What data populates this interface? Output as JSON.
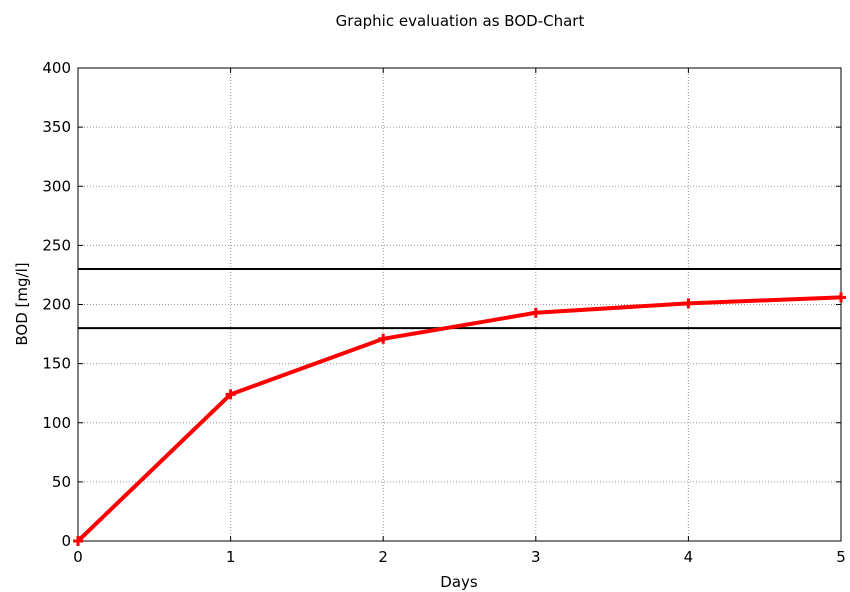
{
  "chart_data": {
    "type": "line",
    "title": "Graphic evaluation as BOD-Chart",
    "xlabel": "Days",
    "ylabel": "BOD [mg/l]",
    "xlim": [
      0,
      5
    ],
    "ylim": [
      0,
      400
    ],
    "xticks": [
      0,
      1,
      2,
      3,
      4,
      5
    ],
    "yticks": [
      0,
      50,
      100,
      150,
      200,
      250,
      300,
      350,
      400
    ],
    "grid": true,
    "grid_style": "dotted",
    "series": [
      {
        "color": "#ff0000",
        "marker": "plus",
        "x": [
          0,
          1,
          2,
          3,
          4,
          5
        ],
        "y": [
          0,
          124,
          171,
          193,
          201,
          206
        ]
      }
    ],
    "reference_lines": [
      {
        "y": 230,
        "color": "#000000"
      },
      {
        "y": 180,
        "color": "#000000"
      }
    ]
  }
}
